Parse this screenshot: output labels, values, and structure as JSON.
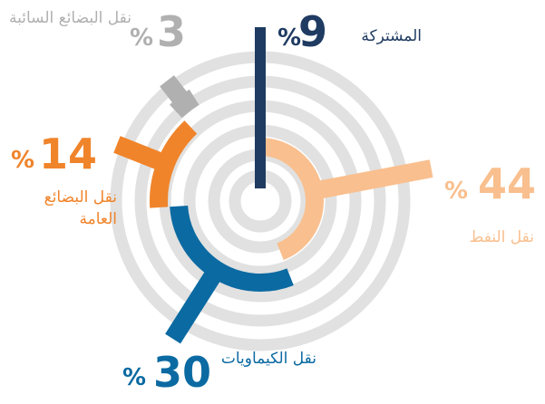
{
  "chart_data": {
    "type": "radial",
    "categories": [
      "نقل النفط",
      "نقل الكيماويات",
      "نقل البضائع العامة",
      "نقل البضائع السائبة",
      "المشتركة"
    ],
    "values": [
      44,
      30,
      14,
      3,
      9
    ],
    "unit": "%",
    "colors": [
      "#f9bf8e",
      "#0b6aa2",
      "#f0842b",
      "#b0b0b0",
      "#1f3b61"
    ]
  }
}
